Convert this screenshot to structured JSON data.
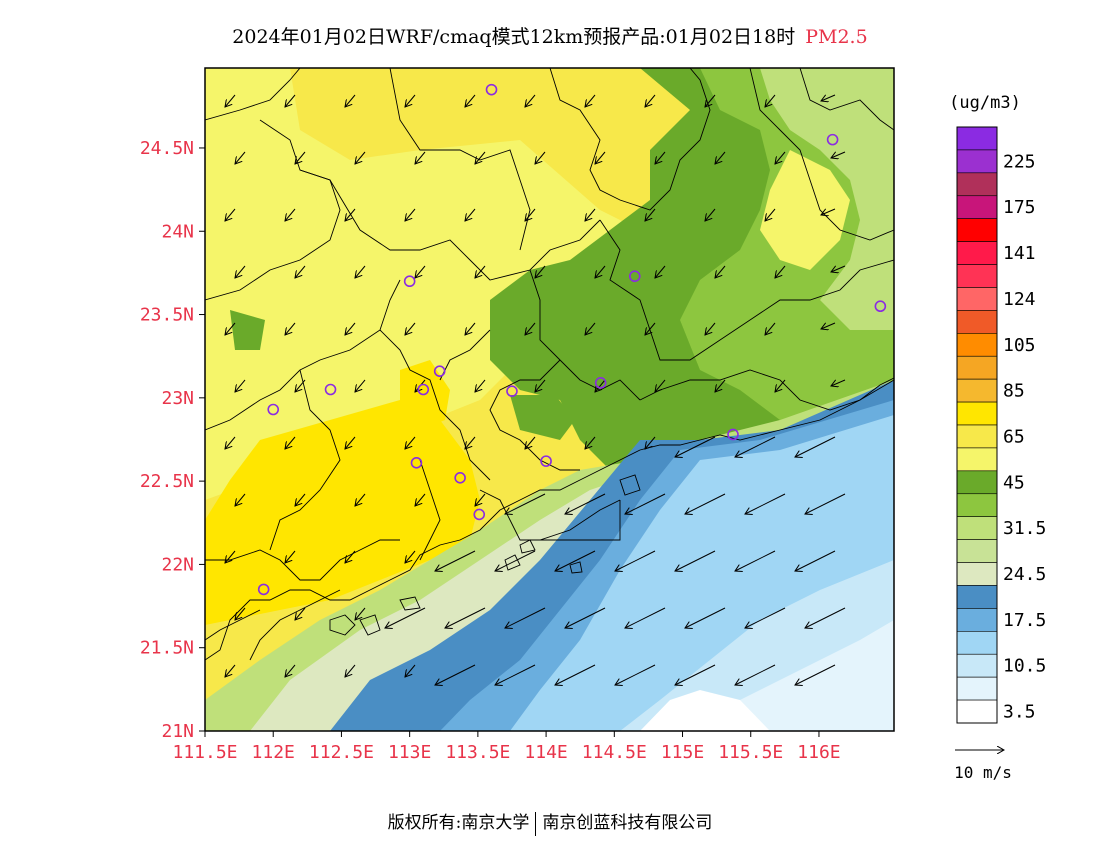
{
  "title": {
    "main": "2024年01月02日WRF/cmaq模式12km预报产品:01月02日18时",
    "pollutant": "PM2.5"
  },
  "axes": {
    "x_ticks": [
      "111.5E",
      "112E",
      "112.5E",
      "113E",
      "113.5E",
      "114E",
      "114.5E",
      "115E",
      "115.5E",
      "116E"
    ],
    "x_values": [
      111.5,
      112,
      112.5,
      113,
      113.5,
      114,
      114.5,
      115,
      115.5,
      116
    ],
    "y_ticks": [
      "21N",
      "21.5N",
      "22N",
      "22.5N",
      "23N",
      "23.5N",
      "24N",
      "24.5N"
    ],
    "y_values": [
      21,
      21.5,
      22,
      22.5,
      23,
      23.5,
      24,
      24.5
    ],
    "lon_range": [
      111.5,
      116.55
    ],
    "lat_range": [
      21,
      24.98
    ],
    "tick_color": "#e8344a"
  },
  "legend": {
    "unit": "(ug/m3)",
    "colors_top_to_bottom": [
      "#8b2be2",
      "#9b30d0",
      "#b0305a",
      "#c8157a",
      "#ff0000",
      "#ff1a4a",
      "#ff3355",
      "#ff6666",
      "#f05a28",
      "#ff8c00",
      "#f5a623",
      "#f5b82e",
      "#ffe600",
      "#f7e84a",
      "#f5f56a",
      "#6aaa2a",
      "#8dc63f",
      "#bfe07a",
      "#c8e296",
      "#dde8c0",
      "#4a8ec4",
      "#6aaede",
      "#a0d6f4",
      "#c8e8f8",
      "#e4f4fc",
      "#ffffff"
    ],
    "labels": [
      {
        "text": "225",
        "at": 1.5
      },
      {
        "text": "175",
        "at": 3.5
      },
      {
        "text": "141",
        "at": 5.5
      },
      {
        "text": "124",
        "at": 7.5
      },
      {
        "text": "105",
        "at": 9.5
      },
      {
        "text": "85",
        "at": 11.5
      },
      {
        "text": "65",
        "at": 13.5
      },
      {
        "text": "45",
        "at": 15.5
      },
      {
        "text": "31.5",
        "at": 17.5
      },
      {
        "text": "24.5",
        "at": 19.5
      },
      {
        "text": "17.5",
        "at": 21.5
      },
      {
        "text": "10.5",
        "at": 23.5
      },
      {
        "text": "3.5",
        "at": 25.5
      }
    ],
    "wind_label": "10 m/s"
  },
  "map_colors": {
    "yellow_bright": "#ffe600",
    "yellow_light": "#f5f56a",
    "yellow_mid": "#f7e84a",
    "green_dark": "#6aaa2a",
    "green_mid": "#8dc63f",
    "green_light": "#bfe07a",
    "green_pale": "#dde8c0",
    "blue_dark": "#4a8ec4",
    "blue_mid": "#6aaede",
    "blue_light": "#a0d6f4",
    "blue_pale": "#c8e8f8",
    "white": "#ffffff",
    "station": "#8b2be2"
  },
  "stations": [
    {
      "lon": 113.6,
      "lat": 24.85
    },
    {
      "lon": 116.1,
      "lat": 24.55
    },
    {
      "lon": 113.0,
      "lat": 23.7
    },
    {
      "lon": 114.65,
      "lat": 23.73
    },
    {
      "lon": 116.45,
      "lat": 23.55
    },
    {
      "lon": 112.0,
      "lat": 22.93
    },
    {
      "lon": 112.42,
      "lat": 23.05
    },
    {
      "lon": 113.1,
      "lat": 23.05
    },
    {
      "lon": 113.22,
      "lat": 23.16
    },
    {
      "lon": 113.75,
      "lat": 23.04
    },
    {
      "lon": 114.4,
      "lat": 23.09
    },
    {
      "lon": 115.37,
      "lat": 22.78
    },
    {
      "lon": 113.05,
      "lat": 22.61
    },
    {
      "lon": 113.37,
      "lat": 22.52
    },
    {
      "lon": 114.0,
      "lat": 22.62
    },
    {
      "lon": 113.51,
      "lat": 22.3
    },
    {
      "lon": 111.93,
      "lat": 21.85
    }
  ],
  "footer": {
    "left": "版权所有:南京大学",
    "right": "南京创蓝科技有限公司"
  }
}
